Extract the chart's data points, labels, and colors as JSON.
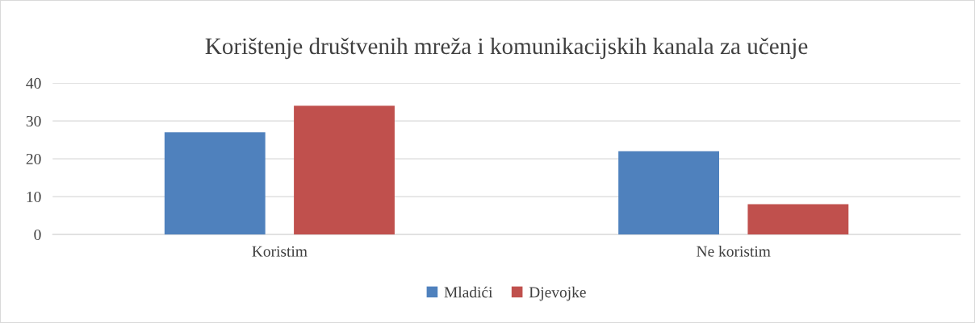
{
  "chart_data": {
    "type": "bar",
    "title": "Korištenje društvenih mreža i komunikacijskih kanala za učenje",
    "categories": [
      "Koristim",
      "Ne koristim"
    ],
    "series": [
      {
        "name": "Mladići",
        "color": "#4f81bd",
        "values": [
          27,
          22
        ]
      },
      {
        "name": "Djevojke",
        "color": "#c0504d",
        "values": [
          34,
          8
        ]
      }
    ],
    "ylim": [
      0,
      40
    ],
    "yticks": [
      0,
      10,
      20,
      30,
      40
    ],
    "grid": "y",
    "legend": "bottom"
  }
}
